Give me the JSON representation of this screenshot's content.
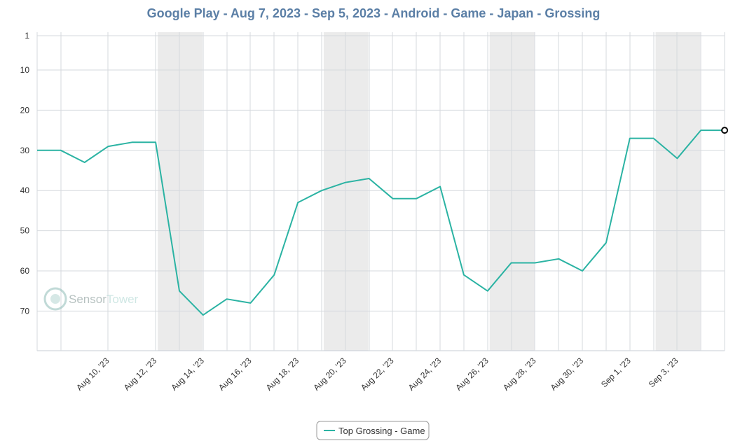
{
  "chart_data": {
    "type": "line",
    "title": "Google Play - Aug 7, 2023 - Sep 5, 2023 - Android - Game - Japan - Grossing",
    "xlabel": "",
    "ylabel": "",
    "y_inverted": true,
    "ylim": [
      1,
      80
    ],
    "yticks": [
      1,
      10,
      20,
      30,
      40,
      50,
      60,
      70
    ],
    "x": [
      "2023-08-07",
      "2023-08-08",
      "2023-08-09",
      "2023-08-10",
      "2023-08-11",
      "2023-08-12",
      "2023-08-13",
      "2023-08-14",
      "2023-08-15",
      "2023-08-16",
      "2023-08-17",
      "2023-08-18",
      "2023-08-19",
      "2023-08-20",
      "2023-08-21",
      "2023-08-22",
      "2023-08-23",
      "2023-08-24",
      "2023-08-25",
      "2023-08-26",
      "2023-08-27",
      "2023-08-28",
      "2023-08-29",
      "2023-08-30",
      "2023-08-31",
      "2023-09-01",
      "2023-09-02",
      "2023-09-03",
      "2023-09-04",
      "2023-09-05"
    ],
    "xtick_labels": [
      "Aug 10, '23",
      "Aug 12, '23",
      "Aug 14, '23",
      "Aug 16, '23",
      "Aug 18, '23",
      "Aug 20, '23",
      "Aug 22, '23",
      "Aug 24, '23",
      "Aug 26, '23",
      "Aug 28, '23",
      "Aug 30, '23",
      "Sep 1, '23",
      "Sep 3, '23"
    ],
    "xtick_dates": [
      "2023-08-10",
      "2023-08-12",
      "2023-08-14",
      "2023-08-16",
      "2023-08-18",
      "2023-08-20",
      "2023-08-22",
      "2023-08-24",
      "2023-08-26",
      "2023-08-28",
      "2023-08-30",
      "2023-09-01",
      "2023-09-03"
    ],
    "weekend_bands": [
      [
        "2023-08-12",
        "2023-08-13"
      ],
      [
        "2023-08-19",
        "2023-08-20"
      ],
      [
        "2023-08-26",
        "2023-08-27"
      ],
      [
        "2023-09-02",
        "2023-09-03"
      ]
    ],
    "series": [
      {
        "name": "Top Grossing - Game",
        "color": "#2bb3a3",
        "values": [
          30,
          30,
          33,
          29,
          28,
          28,
          65,
          71,
          67,
          68,
          61,
          43,
          40,
          38,
          37,
          42,
          42,
          39,
          61,
          65,
          58,
          58,
          57,
          60,
          53,
          27,
          27,
          32,
          25,
          25
        ]
      }
    ],
    "grid": true,
    "legend_position": "bottom-center"
  },
  "watermark": {
    "text_a": "Sensor",
    "text_b": "Tower",
    "icon": "sensortower-logo-icon"
  },
  "colors": {
    "title": "#5b7fa6",
    "line": "#2bb3a3",
    "grid": "#d6d9de",
    "weekend": "#ebebeb",
    "axis": "#c7cdd6"
  }
}
